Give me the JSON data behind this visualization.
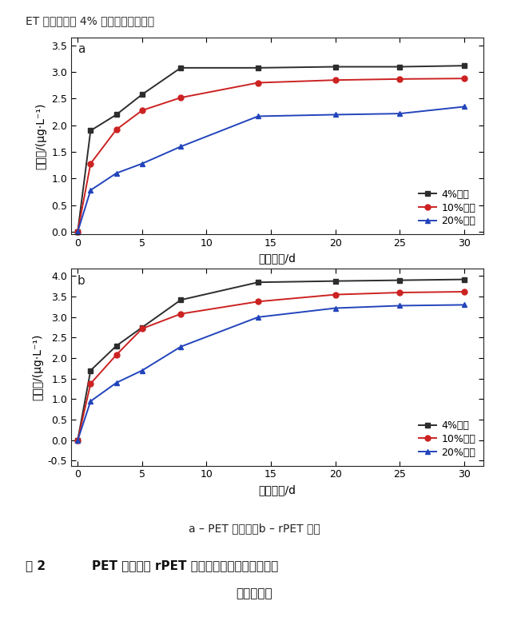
{
  "panel_a": {
    "x": [
      0,
      1,
      3,
      5,
      8,
      14,
      20,
      25,
      30
    ],
    "series": [
      {
        "label": "4%乙酸",
        "color": "#2d2d2d",
        "marker": "s",
        "values": [
          0,
          1.9,
          2.2,
          2.58,
          3.08,
          3.08,
          3.1,
          3.1,
          3.12
        ]
      },
      {
        "label": "10%乙醇",
        "color": "#cc2222",
        "marker": "o",
        "values": [
          0,
          1.28,
          1.92,
          2.28,
          2.52,
          2.8,
          2.85,
          2.87,
          2.88
        ]
      },
      {
        "label": "20%乙醇",
        "color": "#2244bb",
        "marker": "^",
        "values": [
          0,
          0.78,
          1.1,
          1.28,
          1.6,
          2.17,
          2.2,
          2.22,
          2.35
        ]
      }
    ],
    "ylabel": "迁移量/(μg·L⁻¹)",
    "xlabel": "迁移时间/d",
    "ylim": [
      -0.05,
      3.65
    ],
    "yticks": [
      0.0,
      0.5,
      1.0,
      1.5,
      2.0,
      2.5,
      3.0,
      3.5
    ],
    "panel_label": "a"
  },
  "panel_b": {
    "x": [
      0,
      1,
      3,
      5,
      8,
      14,
      20,
      25,
      30
    ],
    "series": [
      {
        "label": "4%乙酸",
        "color": "#2d2d2d",
        "marker": "s",
        "values": [
          0,
          1.7,
          2.3,
          2.75,
          3.42,
          3.85,
          3.88,
          3.9,
          3.92
        ]
      },
      {
        "label": "10%乙醇",
        "color": "#cc2222",
        "marker": "o",
        "values": [
          0,
          1.38,
          2.08,
          2.72,
          3.08,
          3.38,
          3.55,
          3.6,
          3.62
        ]
      },
      {
        "label": "20%乙醇",
        "color": "#2244bb",
        "marker": "^",
        "values": [
          0,
          0.95,
          1.4,
          1.7,
          2.28,
          3.0,
          3.22,
          3.28,
          3.3
        ]
      }
    ],
    "ylabel": "迁移量/(μg·L⁻¹)",
    "xlabel": "迁移时间/d",
    "ylim": [
      -0.62,
      4.18
    ],
    "yticks": [
      -0.5,
      0.0,
      0.5,
      1.0,
      1.5,
      2.0,
      2.5,
      3.0,
      3.5,
      4.0
    ],
    "panel_label": "b"
  },
  "caption_line1": "a – PET 饮料瓶；b – rPET 切片",
  "caption_line2_prefix": "图 2",
  "caption_line2_body": "PET 饮料瓶和 rPET 切片中锄在不同食品模拟液",
  "caption_line3": "下的迁移量",
  "header_text": "ET 饮料瓶于同 4% 乙酸迁移量更大。",
  "xticks": [
    0,
    5,
    10,
    15,
    20,
    25,
    30
  ],
  "background_color": "#ffffff",
  "linewidth": 1.4,
  "markersize": 5
}
